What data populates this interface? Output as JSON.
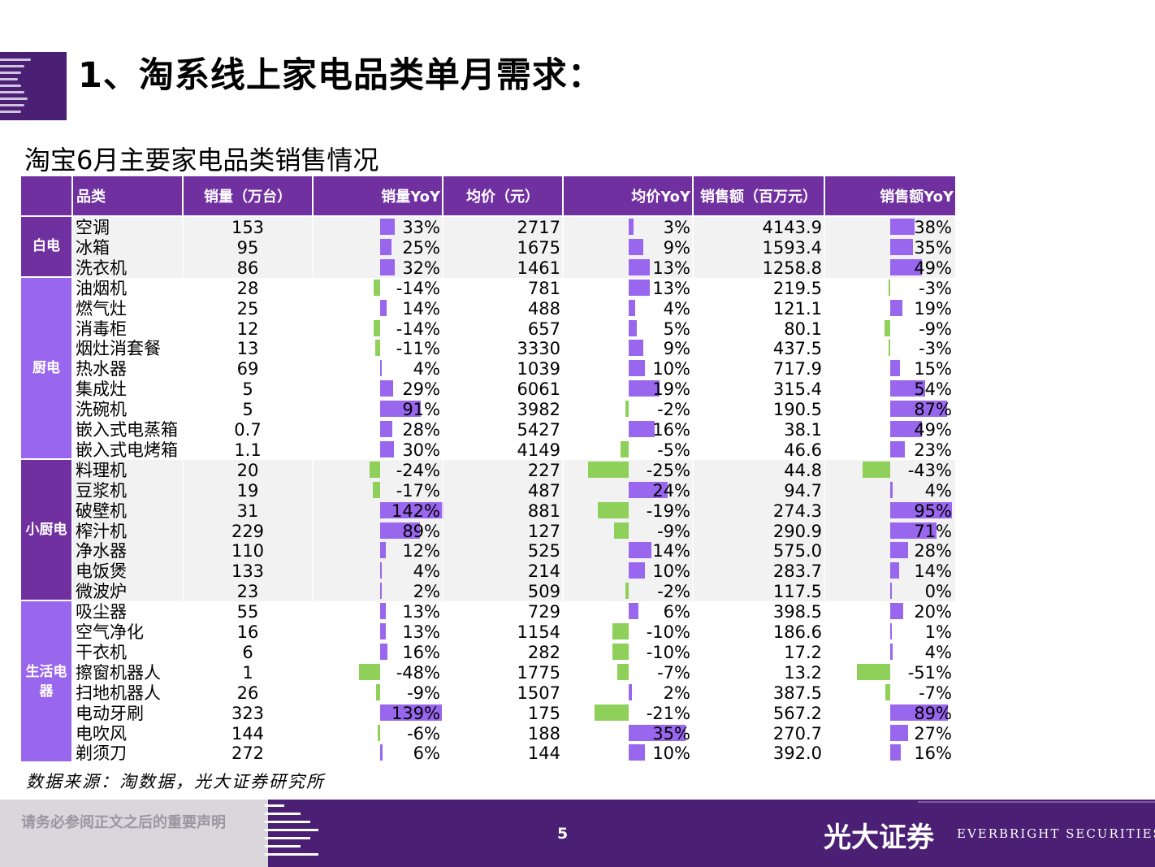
{
  "title": "1、淘系线上家电品类单月需求：",
  "subtitle": "淘宝6月主要家电品类销售情况",
  "colors": {
    "header_purple": "#7030a0",
    "group_purple": "#7030a0",
    "group_purple_light": "#9966ee",
    "bar_positive": "#9966ee",
    "bar_negative": "#8ed05a",
    "row_alt": "#f2f2f2",
    "footer": "#4a1f74"
  },
  "table": {
    "headers": [
      "品类",
      "销量（万台）",
      "销量YoY",
      "均价（元）",
      "均价YoY",
      "销售额（百万元）",
      "销售额YoY"
    ],
    "groups": [
      {
        "name": "白电",
        "start": 0,
        "count": 3
      },
      {
        "name": "厨电",
        "start": 3,
        "count": 9
      },
      {
        "name": "小厨电",
        "start": 12,
        "count": 7
      },
      {
        "name": "生活电器",
        "start": 19,
        "count": 8
      }
    ],
    "rows": [
      {
        "name": "空调",
        "qty": "153",
        "qty_yoy": "33%",
        "qty_yoy_v": 33,
        "price": "2717",
        "price_yoy": "3%",
        "price_yoy_v": 3,
        "sales": "4143.9",
        "sales_yoy": "38%",
        "sales_yoy_v": 38
      },
      {
        "name": "冰箱",
        "qty": "95",
        "qty_yoy": "25%",
        "qty_yoy_v": 25,
        "price": "1675",
        "price_yoy": "9%",
        "price_yoy_v": 9,
        "sales": "1593.4",
        "sales_yoy": "35%",
        "sales_yoy_v": 35
      },
      {
        "name": "洗衣机",
        "qty": "86",
        "qty_yoy": "32%",
        "qty_yoy_v": 32,
        "price": "1461",
        "price_yoy": "13%",
        "price_yoy_v": 13,
        "sales": "1258.8",
        "sales_yoy": "49%",
        "sales_yoy_v": 49
      },
      {
        "name": "油烟机",
        "qty": "28",
        "qty_yoy": "-14%",
        "qty_yoy_v": -14,
        "price": "781",
        "price_yoy": "13%",
        "price_yoy_v": 13,
        "sales": "219.5",
        "sales_yoy": "-3%",
        "sales_yoy_v": -3
      },
      {
        "name": "燃气灶",
        "qty": "25",
        "qty_yoy": "14%",
        "qty_yoy_v": 14,
        "price": "488",
        "price_yoy": "4%",
        "price_yoy_v": 4,
        "sales": "121.1",
        "sales_yoy": "19%",
        "sales_yoy_v": 19
      },
      {
        "name": "消毒柜",
        "qty": "12",
        "qty_yoy": "-14%",
        "qty_yoy_v": -14,
        "price": "657",
        "price_yoy": "5%",
        "price_yoy_v": 5,
        "sales": "80.1",
        "sales_yoy": "-9%",
        "sales_yoy_v": -9
      },
      {
        "name": "烟灶消套餐",
        "qty": "13",
        "qty_yoy": "-11%",
        "qty_yoy_v": -11,
        "price": "3330",
        "price_yoy": "9%",
        "price_yoy_v": 9,
        "sales": "437.5",
        "sales_yoy": "-3%",
        "sales_yoy_v": -3
      },
      {
        "name": "热水器",
        "qty": "69",
        "qty_yoy": "4%",
        "qty_yoy_v": 4,
        "price": "1039",
        "price_yoy": "10%",
        "price_yoy_v": 10,
        "sales": "717.9",
        "sales_yoy": "15%",
        "sales_yoy_v": 15
      },
      {
        "name": "集成灶",
        "qty": "5",
        "qty_yoy": "29%",
        "qty_yoy_v": 29,
        "price": "6061",
        "price_yoy": "19%",
        "price_yoy_v": 19,
        "sales": "315.4",
        "sales_yoy": "54%",
        "sales_yoy_v": 54
      },
      {
        "name": "洗碗机",
        "qty": "5",
        "qty_yoy": "91%",
        "qty_yoy_v": 91,
        "price": "3982",
        "price_yoy": "-2%",
        "price_yoy_v": -2,
        "sales": "190.5",
        "sales_yoy": "87%",
        "sales_yoy_v": 87
      },
      {
        "name": "嵌入式电蒸箱",
        "qty": "0.7",
        "qty_yoy": "28%",
        "qty_yoy_v": 28,
        "price": "5427",
        "price_yoy": "16%",
        "price_yoy_v": 16,
        "sales": "38.1",
        "sales_yoy": "49%",
        "sales_yoy_v": 49
      },
      {
        "name": "嵌入式电烤箱",
        "qty": "1.1",
        "qty_yoy": "30%",
        "qty_yoy_v": 30,
        "price": "4149",
        "price_yoy": "-5%",
        "price_yoy_v": -5,
        "sales": "46.6",
        "sales_yoy": "23%",
        "sales_yoy_v": 23
      },
      {
        "name": "料理机",
        "qty": "20",
        "qty_yoy": "-24%",
        "qty_yoy_v": -24,
        "price": "227",
        "price_yoy": "-25%",
        "price_yoy_v": -25,
        "sales": "44.8",
        "sales_yoy": "-43%",
        "sales_yoy_v": -43
      },
      {
        "name": "豆浆机",
        "qty": "19",
        "qty_yoy": "-17%",
        "qty_yoy_v": -17,
        "price": "487",
        "price_yoy": "24%",
        "price_yoy_v": 24,
        "sales": "94.7",
        "sales_yoy": "4%",
        "sales_yoy_v": 4
      },
      {
        "name": "破壁机",
        "qty": "31",
        "qty_yoy": "142%",
        "qty_yoy_v": 142,
        "price": "881",
        "price_yoy": "-19%",
        "price_yoy_v": -19,
        "sales": "274.3",
        "sales_yoy": "95%",
        "sales_yoy_v": 95
      },
      {
        "name": "榨汁机",
        "qty": "229",
        "qty_yoy": "89%",
        "qty_yoy_v": 89,
        "price": "127",
        "price_yoy": "-9%",
        "price_yoy_v": -9,
        "sales": "290.9",
        "sales_yoy": "71%",
        "sales_yoy_v": 71
      },
      {
        "name": "净水器",
        "qty": "110",
        "qty_yoy": "12%",
        "qty_yoy_v": 12,
        "price": "525",
        "price_yoy": "14%",
        "price_yoy_v": 14,
        "sales": "575.0",
        "sales_yoy": "28%",
        "sales_yoy_v": 28
      },
      {
        "name": "电饭煲",
        "qty": "133",
        "qty_yoy": "4%",
        "qty_yoy_v": 4,
        "price": "214",
        "price_yoy": "10%",
        "price_yoy_v": 10,
        "sales": "283.7",
        "sales_yoy": "14%",
        "sales_yoy_v": 14
      },
      {
        "name": "微波炉",
        "qty": "23",
        "qty_yoy": "2%",
        "qty_yoy_v": 2,
        "price": "509",
        "price_yoy": "-2%",
        "price_yoy_v": -2,
        "sales": "117.5",
        "sales_yoy": "0%",
        "sales_yoy_v": 0
      },
      {
        "name": "吸尘器",
        "qty": "55",
        "qty_yoy": "13%",
        "qty_yoy_v": 13,
        "price": "729",
        "price_yoy": "6%",
        "price_yoy_v": 6,
        "sales": "398.5",
        "sales_yoy": "20%",
        "sales_yoy_v": 20
      },
      {
        "name": "空气净化",
        "qty": "16",
        "qty_yoy": "13%",
        "qty_yoy_v": 13,
        "price": "1154",
        "price_yoy": "-10%",
        "price_yoy_v": -10,
        "sales": "186.6",
        "sales_yoy": "1%",
        "sales_yoy_v": 1
      },
      {
        "name": "干衣机",
        "qty": "6",
        "qty_yoy": "16%",
        "qty_yoy_v": 16,
        "price": "282",
        "price_yoy": "-10%",
        "price_yoy_v": -10,
        "sales": "17.2",
        "sales_yoy": "4%",
        "sales_yoy_v": 4
      },
      {
        "name": "擦窗机器人",
        "qty": "1",
        "qty_yoy": "-48%",
        "qty_yoy_v": -48,
        "price": "1775",
        "price_yoy": "-7%",
        "price_yoy_v": -7,
        "sales": "13.2",
        "sales_yoy": "-51%",
        "sales_yoy_v": -51
      },
      {
        "name": "扫地机器人",
        "qty": "26",
        "qty_yoy": "-9%",
        "qty_yoy_v": -9,
        "price": "1507",
        "price_yoy": "2%",
        "price_yoy_v": 2,
        "sales": "387.5",
        "sales_yoy": "-7%",
        "sales_yoy_v": -7
      },
      {
        "name": "电动牙刷",
        "qty": "323",
        "qty_yoy": "139%",
        "qty_yoy_v": 139,
        "price": "175",
        "price_yoy": "-21%",
        "price_yoy_v": -21,
        "sales": "567.2",
        "sales_yoy": "89%",
        "sales_yoy_v": 89
      },
      {
        "name": "电吹风",
        "qty": "144",
        "qty_yoy": "-6%",
        "qty_yoy_v": -6,
        "price": "188",
        "price_yoy": "35%",
        "price_yoy_v": 35,
        "sales": "270.7",
        "sales_yoy": "27%",
        "sales_yoy_v": 27
      },
      {
        "name": "剃须刀",
        "qty": "272",
        "qty_yoy": "6%",
        "qty_yoy_v": 6,
        "price": "144",
        "price_yoy": "10%",
        "price_yoy_v": 10,
        "sales": "392.0",
        "sales_yoy": "16%",
        "sales_yoy_v": 16
      }
    ]
  },
  "source": "数据来源：淘数据，光大证券研究所",
  "footer": {
    "disclaimer": "请务必参阅正文之后的重要声明",
    "page_number": "5",
    "brand_cn": "光大证券",
    "brand_en": "EVERBRIGHT SECURITIES"
  }
}
